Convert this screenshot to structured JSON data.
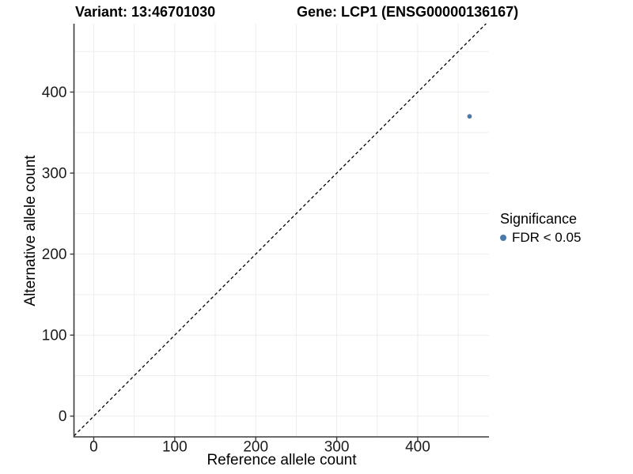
{
  "figure": {
    "title_variant": "Variant: 13:46701030",
    "title_gene": "Gene: LCP1 (ENSG00000136167)"
  },
  "chart_data": {
    "type": "scatter",
    "title": "Variant: 13:46701030   Gene: LCP1 (ENSG00000136167)",
    "xlabel": "Reference allele count",
    "ylabel": "Alternative allele count",
    "xlim": [
      -24.4,
      488
    ],
    "ylim": [
      -25.6,
      484.4
    ],
    "x_ticks": [
      0,
      100,
      200,
      300,
      400
    ],
    "y_ticks": [
      0,
      100,
      200,
      300,
      400
    ],
    "grid": true,
    "grid_step": 50,
    "points": [
      {
        "x": 464,
        "y": 370,
        "series": "FDR < 0.05",
        "color": "#4a7aab"
      }
    ],
    "reference_line": {
      "type": "identity",
      "equation": "y = x",
      "style": "dashed",
      "color": "#000000"
    },
    "legend": {
      "title": "Significance",
      "position": "right",
      "entries": [
        {
          "label": "FDR < 0.05",
          "color": "#4a7aab",
          "marker": "circle"
        }
      ]
    }
  }
}
